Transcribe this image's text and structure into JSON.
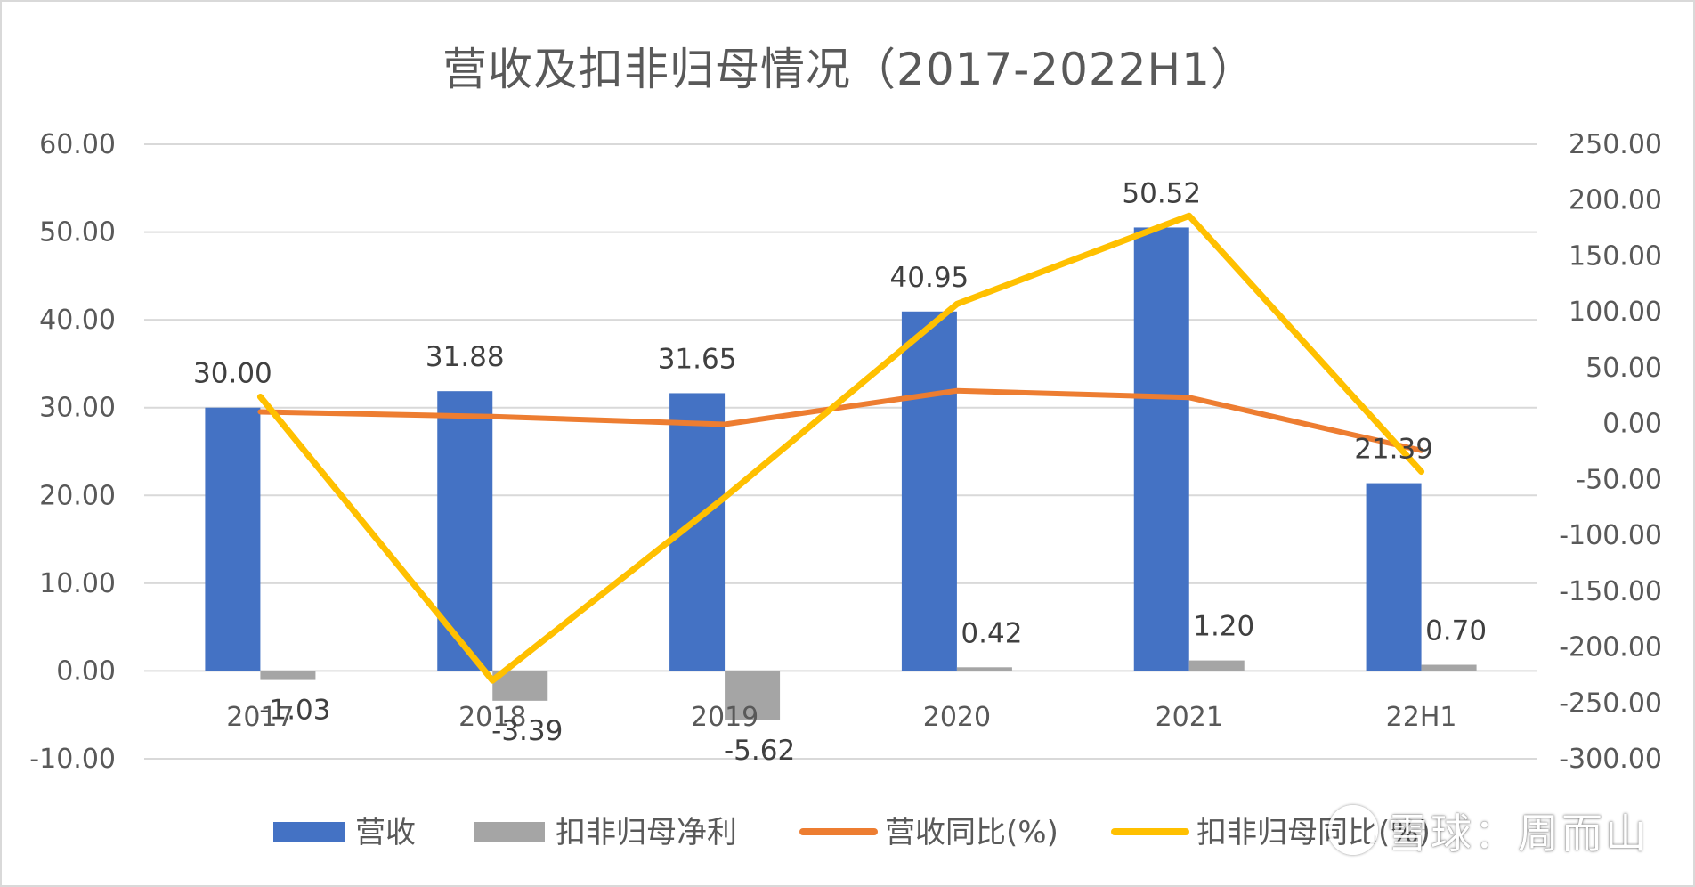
{
  "chart_data": {
    "type": "bar",
    "title": "营收及扣非归母情况（2017-2022H1）",
    "categories": [
      "2017",
      "2018",
      "2019",
      "2020",
      "2021",
      "22H1"
    ],
    "y_left": {
      "ylim": [
        -10,
        60
      ],
      "ticks": [
        "60.00",
        "50.00",
        "40.00",
        "30.00",
        "20.00",
        "10.00",
        "0.00",
        "-10.00"
      ]
    },
    "y_right": {
      "ylim": [
        -300,
        250
      ],
      "ticks": [
        "250.00",
        "200.00",
        "150.00",
        "100.00",
        "50.00",
        "0.00",
        "-50.00",
        "-100.00",
        "-150.00",
        "-200.00",
        "-250.00",
        "-300.00"
      ]
    },
    "grid": true,
    "legend_position": "bottom",
    "series": [
      {
        "name": "营收",
        "type": "bar",
        "axis": "left",
        "color": "#4472c4",
        "values": [
          30.0,
          31.88,
          31.65,
          40.95,
          50.52,
          21.39
        ],
        "labels": [
          "30.00",
          "31.88",
          "31.65",
          "40.95",
          "50.52",
          "21.39"
        ]
      },
      {
        "name": "扣非归母净利",
        "type": "bar",
        "axis": "left",
        "color": "#a5a5a5",
        "values": [
          -1.03,
          -3.39,
          -5.62,
          0.42,
          1.2,
          0.7
        ],
        "labels": [
          "-1.03",
          "-3.39",
          "-5.62",
          "0.42",
          "1.20",
          "0.70"
        ]
      },
      {
        "name": "营收同比(%)",
        "type": "line",
        "axis": "right",
        "color": "#ed7d31",
        "values": [
          10.5,
          6.3,
          -0.7,
          29.4,
          23.4,
          -24.0
        ]
      },
      {
        "name": "扣非归母同比(%)",
        "type": "line",
        "axis": "right",
        "color": "#ffc000",
        "values": [
          24,
          -230,
          -66,
          107,
          186,
          -43
        ]
      }
    ],
    "legend": [
      {
        "label": "营收",
        "kind": "bar",
        "color": "#4472c4"
      },
      {
        "label": "扣非归母净利",
        "kind": "bar",
        "color": "#a5a5a5"
      },
      {
        "label": "营收同比(%)",
        "kind": "line",
        "color": "#ed7d31"
      },
      {
        "label": "扣非归母同比(%)",
        "kind": "line",
        "color": "#ffc000"
      }
    ]
  },
  "watermark": "雪球：周而山"
}
